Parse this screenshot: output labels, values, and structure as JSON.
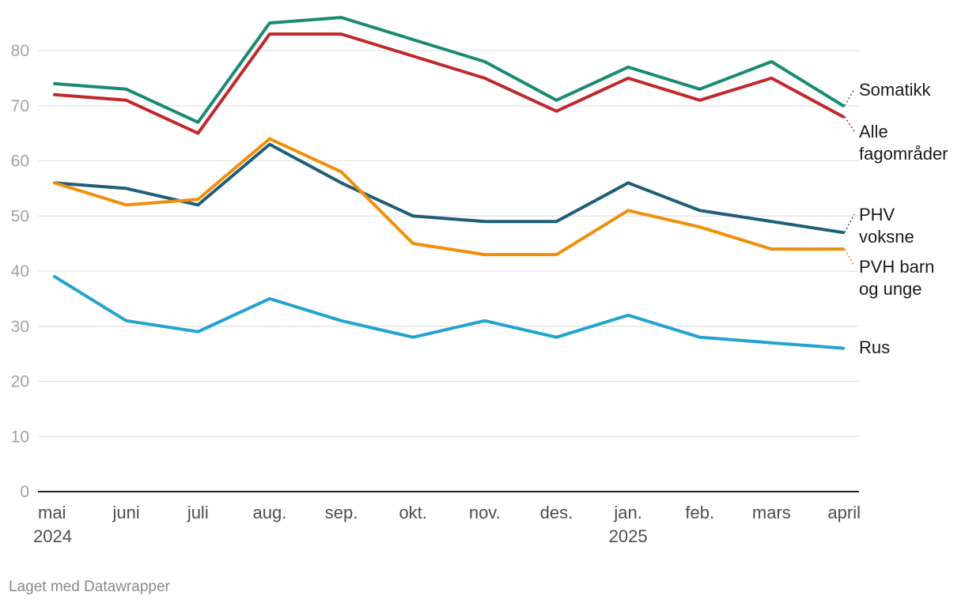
{
  "chart_data": {
    "type": "line",
    "x": [
      "mai",
      "juni",
      "juli",
      "aug.",
      "sep.",
      "okt.",
      "nov.",
      "des.",
      "jan.",
      "feb.",
      "mars",
      "april"
    ],
    "x_years": [
      "2024",
      "",
      "",
      "",
      "",
      "",
      "",
      "",
      "2025",
      "",
      "",
      ""
    ],
    "ylim": [
      0,
      86
    ],
    "yticks": [
      0,
      10,
      20,
      30,
      40,
      50,
      60,
      70,
      80
    ],
    "grid": true,
    "legend": "direct labels at line ends (right)",
    "series": [
      {
        "name": "Somatikk",
        "label_lines": [
          "Somatikk"
        ],
        "color": "#1a8a73",
        "values": [
          74,
          73,
          67,
          85,
          86,
          82,
          78,
          71,
          77,
          73,
          78,
          70
        ]
      },
      {
        "name": "Alle fagområder",
        "label_lines": [
          "Alle",
          "fagområder"
        ],
        "color": "#c0282a",
        "values": [
          72,
          71,
          65,
          83,
          83,
          79,
          75,
          69,
          75,
          71,
          75,
          68
        ]
      },
      {
        "name": "PHV voksne",
        "label_lines": [
          "PHV",
          "voksne"
        ],
        "color": "#1e5e78",
        "values": [
          56,
          55,
          52,
          63,
          56,
          50,
          49,
          49,
          56,
          51,
          49,
          47
        ]
      },
      {
        "name": "PVH barn og unge",
        "label_lines": [
          "PVH barn",
          "og unge"
        ],
        "color": "#f18e0a",
        "values": [
          56,
          52,
          53,
          64,
          58,
          45,
          43,
          43,
          51,
          48,
          44,
          44
        ]
      },
      {
        "name": "Rus",
        "label_lines": [
          "Rus"
        ],
        "color": "#23a3d0",
        "values": [
          39,
          31,
          29,
          35,
          31,
          28,
          31,
          28,
          32,
          28,
          27,
          26
        ]
      }
    ]
  },
  "footer": {
    "credit": "Laget med Datawrapper"
  }
}
